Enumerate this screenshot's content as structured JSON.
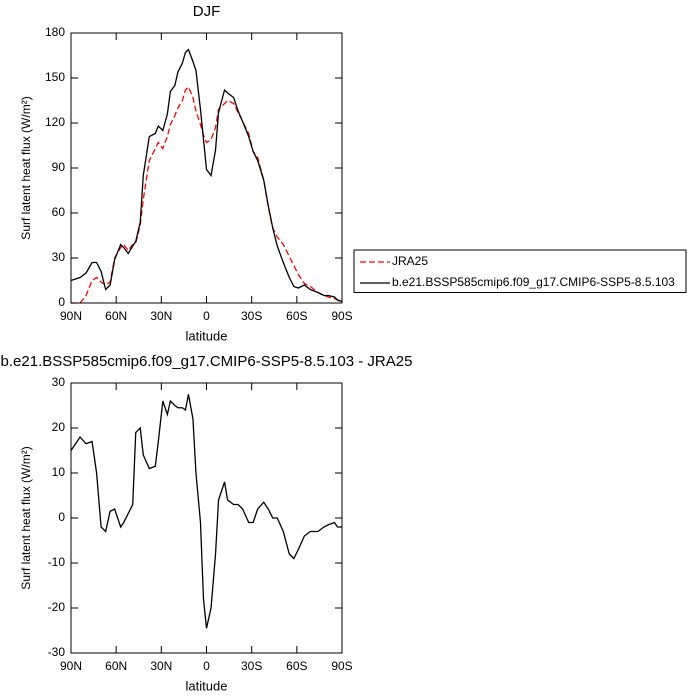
{
  "chart_data": [
    {
      "type": "line",
      "title": "DJF",
      "xlabel": "latitude",
      "ylabel": "Surf latent heat flux (W/m²)",
      "x": [
        90,
        84,
        80,
        76,
        73,
        70,
        67,
        64,
        61,
        57,
        55,
        52,
        49,
        47,
        44,
        42,
        38,
        34,
        32,
        29,
        26,
        24,
        21,
        19,
        16,
        14,
        12,
        9,
        7,
        4,
        2,
        0,
        -3,
        -6,
        -8,
        -12,
        -14,
        -18,
        -21,
        -24,
        -28,
        -31,
        -34,
        -38,
        -41,
        -44,
        -47,
        -51,
        -55,
        -58,
        -61,
        -65,
        -69,
        -74,
        -78,
        -81,
        -85,
        -87,
        -90
      ],
      "series": [
        {
          "name": "JRA25",
          "color": "#ff0000",
          "linestyle": "dashed",
          "values": [
            0,
            0,
            5,
            15,
            17,
            14,
            12,
            14,
            30,
            37,
            39,
            35,
            39,
            40,
            52,
            69,
            95,
            103,
            107,
            103,
            111,
            119,
            125,
            130,
            135,
            142,
            144,
            137,
            128,
            119,
            112,
            107,
            109,
            117,
            129,
            133,
            135,
            133,
            127,
            121,
            113,
            101,
            97,
            82,
            64,
            50,
            44,
            39,
            31,
            25,
            19,
            13,
            11,
            7,
            5,
            4,
            3,
            2,
            0
          ]
        },
        {
          "name": "b.e21.BSSP585cmip6.f09_g17.CMIP6-SSP5-8.5.103",
          "color": "#000000",
          "linestyle": "solid",
          "values": [
            15,
            17,
            20,
            27,
            27,
            21,
            9,
            12,
            29,
            39,
            37,
            33,
            38,
            41,
            54,
            85,
            111,
            113,
            118,
            115,
            126,
            141,
            145,
            154,
            160,
            167,
            169,
            161,
            155,
            129,
            109,
            89,
            85,
            102,
            127,
            142,
            140,
            137,
            128,
            121,
            111,
            101,
            95,
            82,
            65,
            50,
            38,
            27,
            17,
            11,
            10,
            12,
            9,
            7,
            5,
            5,
            4,
            2,
            1
          ]
        }
      ],
      "xlim": [
        90,
        -90
      ],
      "xticks": [
        {
          "value": 90,
          "label": "90N"
        },
        {
          "value": 60,
          "label": "60N"
        },
        {
          "value": 30,
          "label": "30N"
        },
        0,
        {
          "value": -30,
          "label": "30S"
        },
        {
          "value": -60,
          "label": "60S"
        },
        {
          "value": -90,
          "label": "90S"
        }
      ],
      "ylim": [
        0,
        180
      ],
      "yticks": [
        0,
        30,
        60,
        90,
        120,
        150,
        180
      ],
      "legend": "right"
    },
    {
      "type": "line",
      "title": "b.e21.BSSP585cmip6.f09_g17.CMIP6-SSP5-8.5.103 - JRA25",
      "xlabel": "latitude",
      "ylabel": "Surf latent heat flux (W/m²)",
      "x": [
        90,
        84,
        80,
        76,
        73,
        70,
        67,
        64,
        61,
        57,
        55,
        52,
        49,
        47,
        44,
        42,
        38,
        34,
        32,
        29,
        26,
        24,
        21,
        19,
        16,
        14,
        12,
        9,
        7,
        4,
        2,
        0,
        -3,
        -6,
        -8,
        -12,
        -14,
        -18,
        -21,
        -24,
        -28,
        -31,
        -34,
        -38,
        -41,
        -44,
        -47,
        -51,
        -55,
        -58,
        -61,
        -65,
        -69,
        -74,
        -78,
        -81,
        -85,
        -87,
        -90
      ],
      "series": [
        {
          "color": "#000000",
          "linestyle": "solid",
          "values": [
            15,
            18,
            16.5,
            17,
            10,
            -2,
            -3,
            1.5,
            2,
            -2,
            -1,
            1,
            3,
            19,
            20,
            14,
            11,
            11.5,
            17,
            26,
            23,
            26,
            25,
            24.5,
            24.5,
            24,
            27.5,
            22,
            10,
            -1,
            -18,
            -24.5,
            -20,
            -8,
            4,
            8,
            4,
            3,
            3,
            2,
            -1,
            -1,
            2,
            3.5,
            2,
            0,
            0,
            -3,
            -8,
            -9,
            -7,
            -4,
            -3,
            -3,
            -2,
            -1.5,
            -1,
            -2,
            -2
          ]
        }
      ],
      "xlim": [
        90,
        -90
      ],
      "xticks": [
        {
          "value": 90,
          "label": "90N"
        },
        {
          "value": 60,
          "label": "60N"
        },
        {
          "value": 30,
          "label": "30N"
        },
        0,
        {
          "value": -30,
          "label": "30S"
        },
        {
          "value": -60,
          "label": "60S"
        },
        {
          "value": -90,
          "label": "90S"
        }
      ],
      "ylim": [
        -30,
        30
      ],
      "yticks": [
        -30,
        -20,
        -10,
        0,
        10,
        20,
        30
      ]
    }
  ]
}
